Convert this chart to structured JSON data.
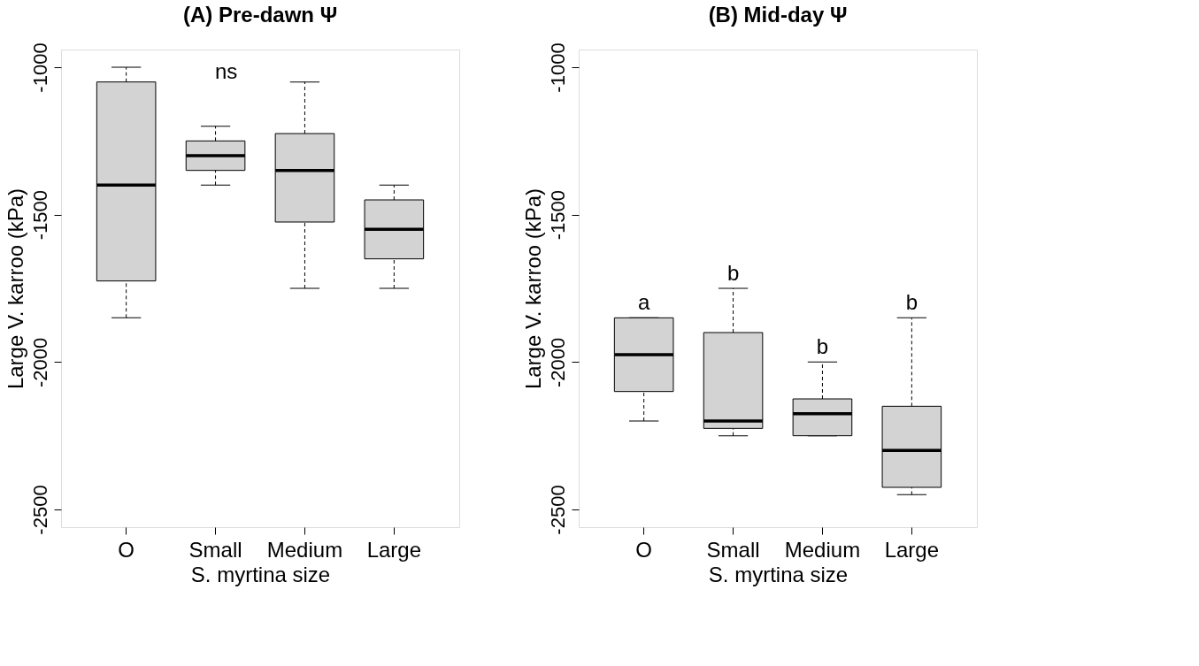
{
  "chart_data": [
    {
      "type": "box",
      "title": "(A) Pre-dawn Ψ",
      "xlabel": "S. myrtina size",
      "ylabel": "Large V. karroo (kPa)",
      "categories": [
        "O",
        "Small",
        "Medium",
        "Large"
      ],
      "series": [
        {
          "color": "#d3d3d3",
          "boxes": [
            {
              "low": -1850,
              "q1": -1725,
              "median": -1400,
              "q3": -1050,
              "high": -1000
            },
            {
              "low": -1400,
              "q1": -1350,
              "median": -1300,
              "q3": -1250,
              "high": -1200
            },
            {
              "low": -1750,
              "q1": -1525,
              "median": -1350,
              "q3": -1225,
              "high": -1050
            },
            {
              "low": -1750,
              "q1": -1650,
              "median": -1550,
              "q3": -1450,
              "high": -1400
            }
          ]
        }
      ],
      "ylim": [
        -2560,
        -940
      ],
      "yticks": [
        -2500,
        -2000,
        -1500,
        -1000
      ],
      "annotations": [
        "ns"
      ]
    },
    {
      "type": "box",
      "title": "(B) Mid-day Ψ",
      "xlabel": "S. myrtina size",
      "ylabel": "Large V. karroo (kPa)",
      "categories": [
        "O",
        "Small",
        "Medium",
        "Large"
      ],
      "series": [
        {
          "color": "#d3d3d3",
          "boxes": [
            {
              "low": -2200,
              "q1": -2100,
              "median": -1975,
              "q3": -1850,
              "high": -1850
            },
            {
              "low": -2250,
              "q1": -2225,
              "median": -2200,
              "q3": -1900,
              "high": -1750
            },
            {
              "low": -2250,
              "q1": -2250,
              "median": -2175,
              "q3": -2125,
              "high": -2000
            },
            {
              "low": -2450,
              "q1": -2425,
              "median": -2300,
              "q3": -2150,
              "high": -1850
            }
          ]
        }
      ],
      "ylim": [
        -2560,
        -940
      ],
      "yticks": [
        -2500,
        -2000,
        -1500,
        -1000
      ],
      "annotations": [
        {
          "text": "a",
          "x": "O",
          "y": -1850
        },
        {
          "text": "b",
          "x": "Small",
          "y": -1750
        },
        {
          "text": "b",
          "x": "Medium",
          "y": -2000
        },
        {
          "text": "b",
          "x": "Large",
          "y": -1850
        }
      ]
    }
  ]
}
